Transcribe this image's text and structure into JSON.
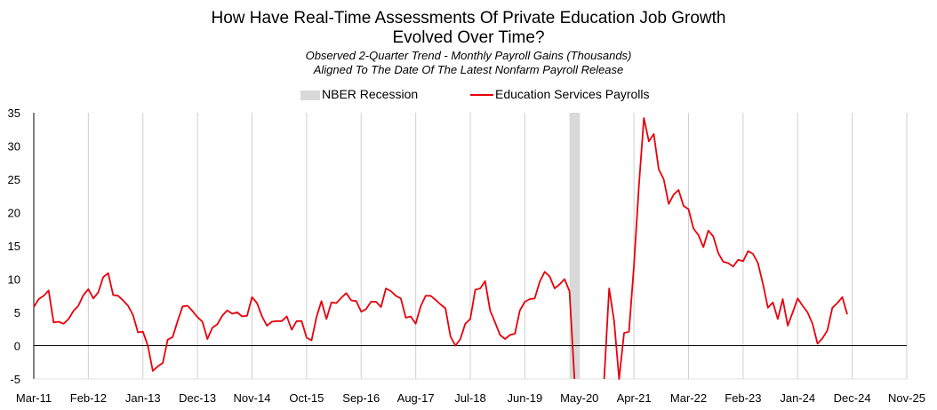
{
  "chart_data": {
    "type": "line",
    "title": "How Have Real-Time Assessments Of Private Education Job Growth Evolved Over Time?",
    "title_lines": [
      "How Have Real-Time Assessments Of Private Education Job Growth",
      "Evolved Over Time?"
    ],
    "subtitle_lines": [
      "Observed 2-Quarter Trend - Monthly Payroll Gains (Thousands)",
      "Aligned To The Date Of The Latest Nonfarm Payroll Release"
    ],
    "xlabel": "",
    "ylabel": "",
    "ylim": [
      -5,
      35
    ],
    "yticks": [
      -5,
      0,
      5,
      10,
      15,
      20,
      25,
      30,
      35
    ],
    "xlim": [
      "2011-03",
      "2025-11"
    ],
    "xticks": [
      "Mar-11",
      "Feb-12",
      "Jan-13",
      "Dec-13",
      "Nov-14",
      "Oct-15",
      "Sep-16",
      "Aug-17",
      "Jul-18",
      "Jun-19",
      "May-20",
      "Apr-21",
      "Mar-22",
      "Feb-23",
      "Jan-24",
      "Dec-24",
      "Nov-25"
    ],
    "grid": "vertical",
    "legend_position": "top-center",
    "recession": {
      "name": "NBER Recession",
      "start": "2020-03",
      "end": "2020-04",
      "color": "#d9d9d9"
    },
    "series": [
      {
        "name": "Education Services Payrolls",
        "color": "#e8000b",
        "start": "2011-03",
        "values": [
          5.8,
          7.0,
          7.5,
          8.3,
          3.5,
          3.6,
          3.3,
          4.0,
          5.2,
          6.0,
          7.6,
          8.5,
          7.1,
          8.0,
          10.3,
          10.9,
          7.6,
          7.5,
          6.8,
          6.0,
          4.6,
          2.0,
          2.1,
          0.0,
          -3.8,
          -3.1,
          -2.6,
          0.9,
          1.3,
          3.7,
          5.9,
          6.0,
          5.2,
          4.3,
          3.6,
          1.0,
          2.7,
          3.2,
          4.5,
          5.3,
          4.8,
          5.0,
          4.4,
          4.5,
          7.3,
          6.4,
          4.4,
          3.0,
          3.6,
          3.7,
          3.7,
          4.4,
          2.4,
          3.7,
          3.7,
          1.2,
          0.8,
          4.3,
          6.7,
          4.0,
          6.5,
          6.4,
          7.2,
          7.9,
          6.8,
          6.7,
          5.1,
          5.5,
          6.6,
          6.6,
          5.8,
          8.6,
          8.2,
          7.5,
          7.1,
          4.2,
          4.4,
          3.3,
          5.9,
          7.5,
          7.5,
          6.9,
          6.2,
          5.6,
          1.4,
          0.0,
          1.0,
          3.3,
          4.0,
          8.4,
          8.6,
          9.7,
          5.3,
          3.5,
          1.6,
          1.0,
          1.6,
          1.8,
          5.3,
          6.6,
          7.0,
          7.1,
          9.6,
          11.1,
          10.4,
          8.6,
          9.2,
          10.0,
          8.2,
          -5.0,
          null,
          null,
          null,
          null,
          null,
          -5.0,
          8.6,
          3.7,
          -5.0,
          1.9,
          2.1,
          12.0,
          24.0,
          34.2,
          30.7,
          31.8,
          26.5,
          25.0,
          21.3,
          22.7,
          23.4,
          21.0,
          20.5,
          17.6,
          16.6,
          14.8,
          17.3,
          16.4,
          13.9,
          12.6,
          12.4,
          11.9,
          12.9,
          12.7,
          14.2,
          13.8,
          12.4,
          9.3,
          5.7,
          6.5,
          4.0,
          7.0,
          3.0,
          5.0,
          7.1,
          6.0,
          5.0,
          3.3,
          0.3,
          1.1,
          2.3,
          5.7,
          6.4,
          7.3,
          4.7
        ]
      }
    ]
  }
}
